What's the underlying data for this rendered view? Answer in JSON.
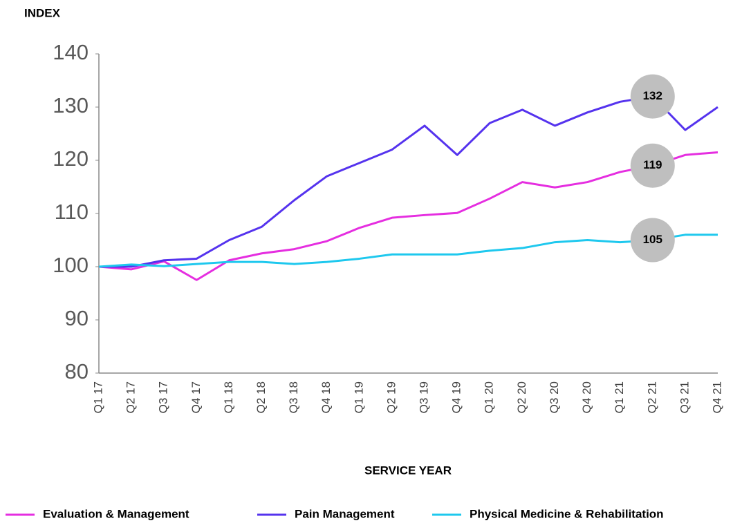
{
  "chart_data": {
    "type": "line",
    "y_axis_label": "INDEX",
    "x_axis_label": "SERVICE YEAR",
    "categories": [
      "Q1 17",
      "Q2 17",
      "Q3 17",
      "Q4 17",
      "Q1 18",
      "Q2 18",
      "Q3 18",
      "Q4 18",
      "Q1 19",
      "Q2 19",
      "Q3 19",
      "Q4 19",
      "Q1 20",
      "Q2 20",
      "Q3 20",
      "Q4 20",
      "Q1 21",
      "Q2 21",
      "Q3 21",
      "Q4 21"
    ],
    "series": [
      {
        "name": "Evaluation & Management",
        "color": "#e52ee0",
        "values": [
          100,
          99.5,
          101,
          97.5,
          101.2,
          102.5,
          103.3,
          104.8,
          107.3,
          109.2,
          109.7,
          110.1,
          112.8,
          115.9,
          114.9,
          115.9,
          117.8,
          119,
          121,
          121.5
        ]
      },
      {
        "name": "Pain Management",
        "color": "#5533ee",
        "values": [
          100,
          100,
          101.2,
          101.5,
          105,
          107.5,
          112.5,
          117,
          119.5,
          122,
          126.5,
          121,
          127,
          129.5,
          126.5,
          129,
          131,
          132,
          125.7,
          130
        ]
      },
      {
        "name": "Physical Medicine & Rehabilitation",
        "color": "#1ec8ee",
        "values": [
          100,
          100.4,
          100.1,
          100.5,
          100.9,
          100.9,
          100.5,
          100.9,
          101.5,
          102.3,
          102.3,
          102.3,
          103,
          103.5,
          104.6,
          105,
          104.6,
          105,
          106,
          106
        ]
      }
    ],
    "labeled_category": "Q2 21",
    "ylim": [
      80,
      140
    ],
    "yticks": [
      80,
      90,
      100,
      110,
      120,
      130,
      140
    ],
    "legend": "bottom"
  }
}
